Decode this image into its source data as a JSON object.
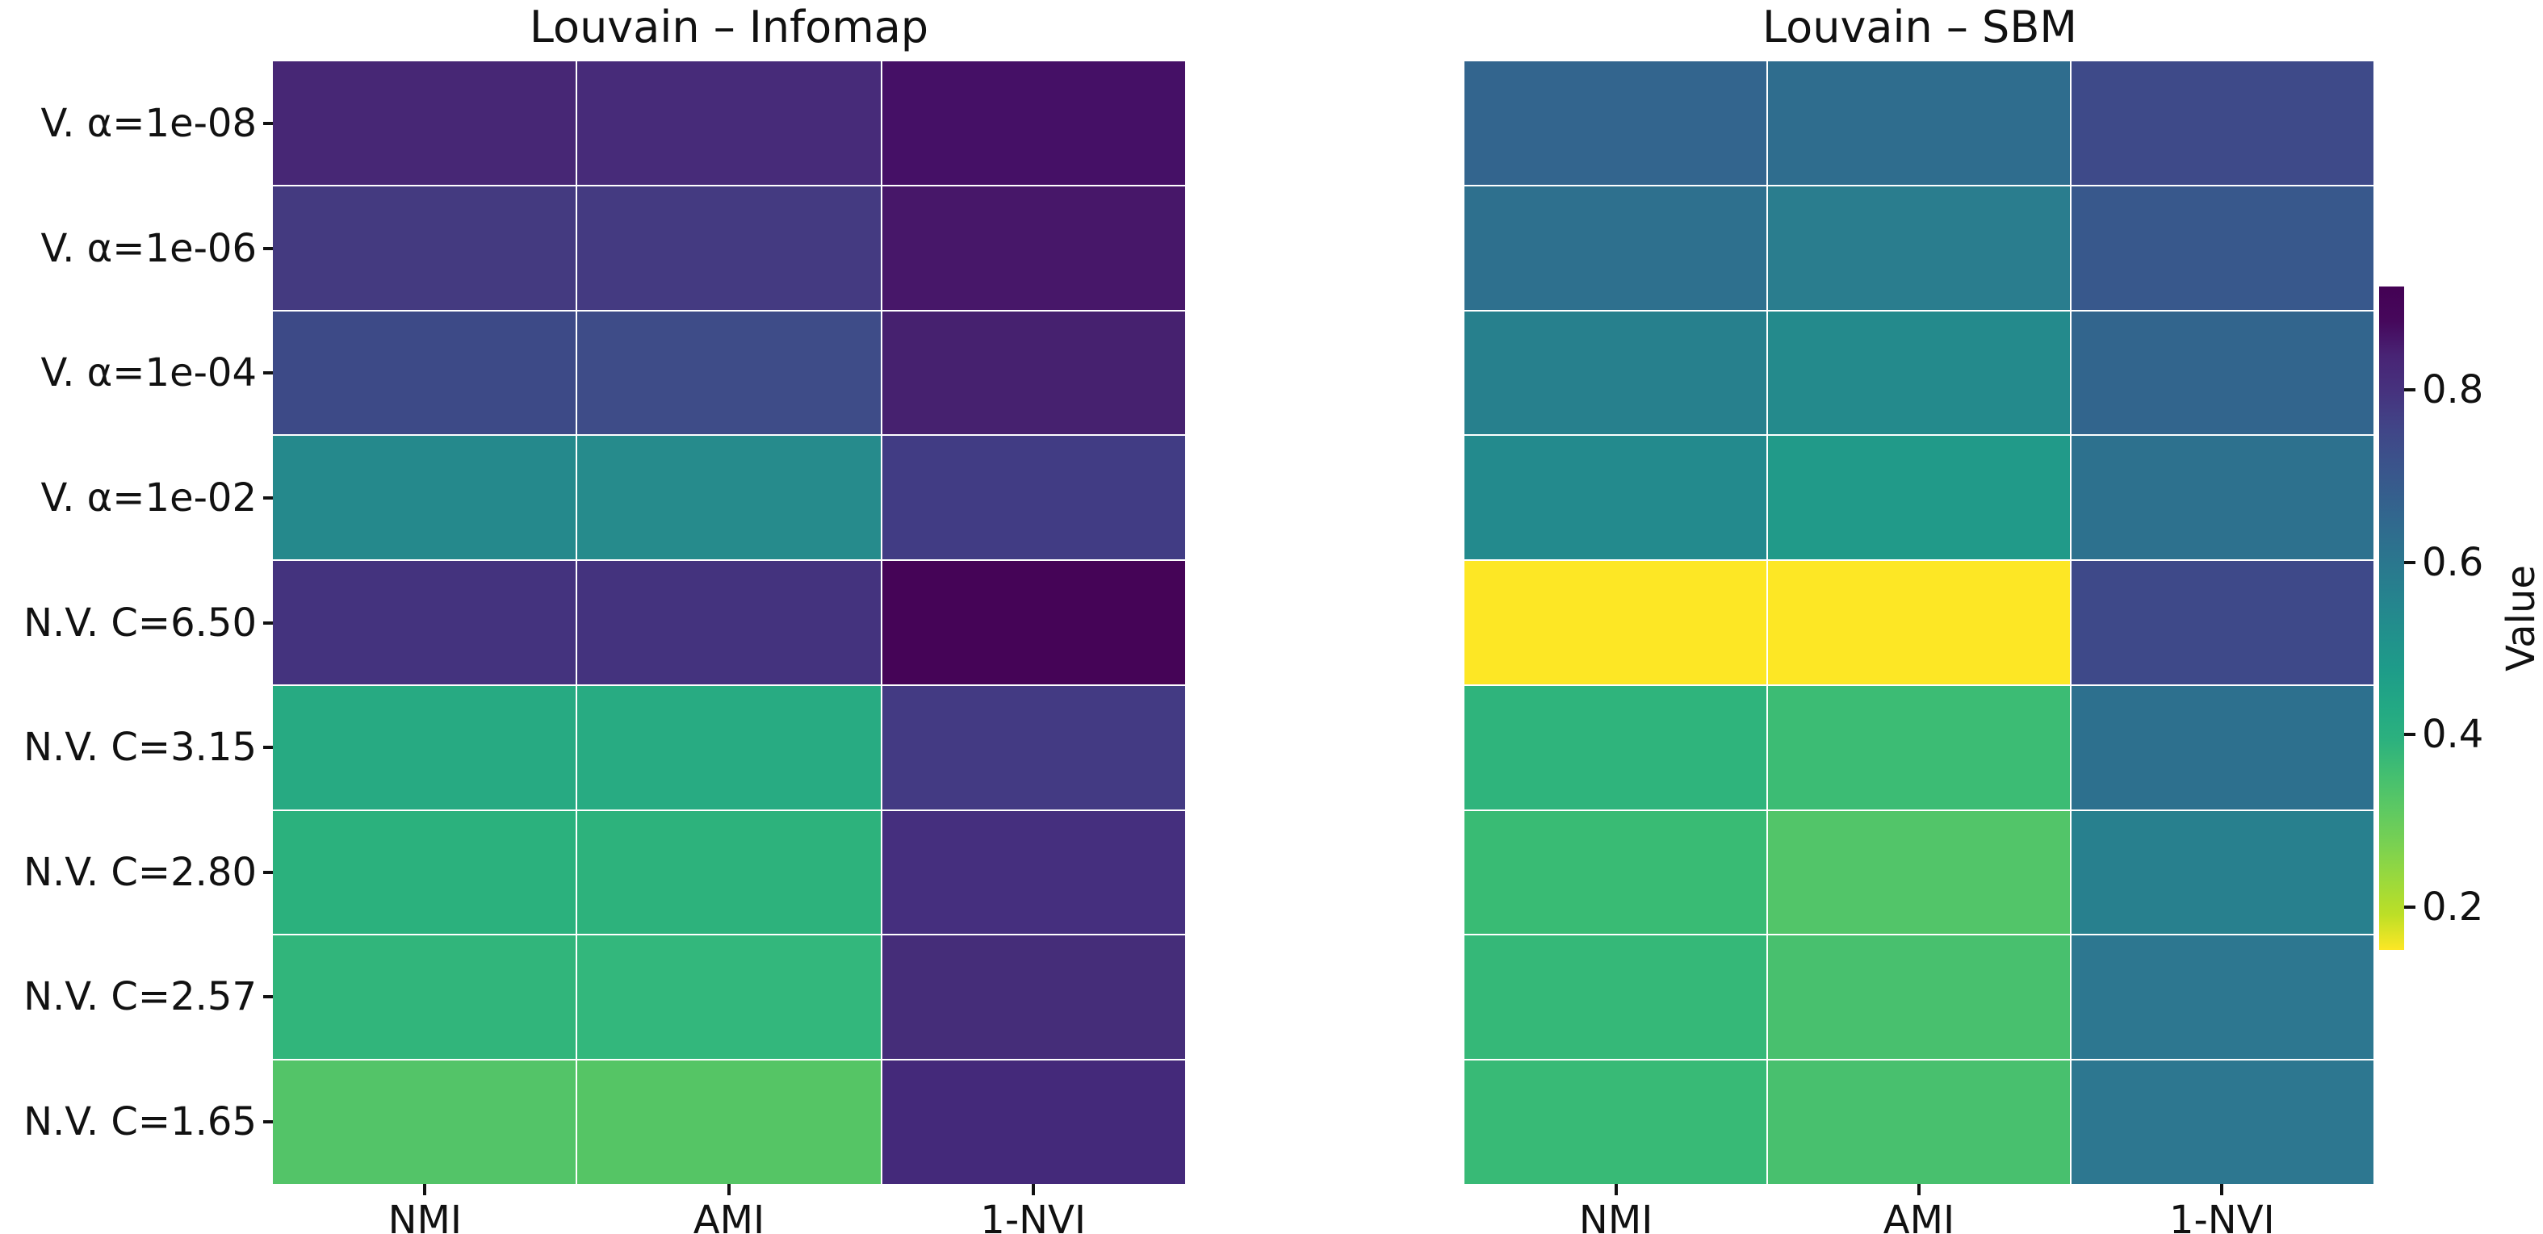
{
  "figure": {
    "background": "#ffffff",
    "text_color": "#111111"
  },
  "chart_data": [
    {
      "type": "heatmap",
      "title": "Louvain – Infomap",
      "rows": [
        "V. α=1e-08",
        "V. α=1e-06",
        "V. α=1e-04",
        "V. α=1e-02",
        "N.V. C=6.50",
        "N.V. C=3.15",
        "N.V. C=2.80",
        "N.V. C=2.57",
        "N.V. C=1.65"
      ],
      "columns": [
        "NMI",
        "AMI",
        "1-NVI"
      ],
      "values": [
        [
          0.84,
          0.83,
          0.87
        ],
        [
          0.79,
          0.79,
          0.86
        ],
        [
          0.75,
          0.75,
          0.85
        ],
        [
          0.56,
          0.56,
          0.78
        ],
        [
          0.8,
          0.8,
          0.9
        ],
        [
          0.45,
          0.45,
          0.79
        ],
        [
          0.42,
          0.42,
          0.81
        ],
        [
          0.42,
          0.41,
          0.82
        ],
        [
          0.36,
          0.35,
          0.83
        ]
      ],
      "colors": [
        [
          "#472775",
          "#472b79",
          "#451066"
        ],
        [
          "#443a80",
          "#443a81",
          "#471769"
        ],
        [
          "#3d4a87",
          "#3e4c88",
          "#46216f"
        ],
        [
          "#25898c",
          "#268b8c",
          "#413c84"
        ],
        [
          "#44337e",
          "#44337e",
          "#450457"
        ],
        [
          "#27aa82",
          "#28ab82",
          "#433a83"
        ],
        [
          "#2bb17d",
          "#2db27c",
          "#452f7e"
        ],
        [
          "#31b57b",
          "#33b77c",
          "#452d79"
        ],
        [
          "#53c468",
          "#55c565",
          "#44297a"
        ]
      ],
      "colormap": "viridis_r",
      "vmin": 0.15,
      "vmax": 0.92,
      "grid": true,
      "gridline_color": "#ffffff"
    },
    {
      "type": "heatmap",
      "title": "Louvain – SBM",
      "rows": [
        "V. α=1e-08",
        "V. α=1e-06",
        "V. α=1e-04",
        "V. α=1e-02",
        "N.V. C=6.50",
        "N.V. C=3.15",
        "N.V. C=2.80",
        "N.V. C=2.57",
        "N.V. C=1.65"
      ],
      "columns": [
        "NMI",
        "AMI",
        "1-NVI"
      ],
      "values": [
        [
          0.67,
          0.65,
          0.75
        ],
        [
          0.64,
          0.6,
          0.71
        ],
        [
          0.59,
          0.55,
          0.67
        ],
        [
          0.55,
          0.5,
          0.64
        ],
        [
          0.15,
          0.15,
          0.75
        ],
        [
          0.41,
          0.39,
          0.64
        ],
        [
          0.4,
          0.36,
          0.59
        ],
        [
          0.4,
          0.38,
          0.62
        ],
        [
          0.4,
          0.38,
          0.62
        ]
      ],
      "colors": [
        [
          "#33658e",
          "#2f6d8e",
          "#3e4a89"
        ],
        [
          "#2e708e",
          "#2a7d8e",
          "#38588c"
        ],
        [
          "#27808d",
          "#248a8c",
          "#32658d"
        ],
        [
          "#238a8d",
          "#219a89",
          "#2d718e"
        ],
        [
          "#fde725",
          "#fde725",
          "#3e4989"
        ],
        [
          "#2fb47c",
          "#3cbc74",
          "#2d708e"
        ],
        [
          "#39bb74",
          "#52c569",
          "#28808e"
        ],
        [
          "#35b878",
          "#48c06e",
          "#2d7790"
        ],
        [
          "#38ba76",
          "#48c06e",
          "#2d7790"
        ]
      ],
      "colormap": "viridis_r",
      "vmin": 0.15,
      "vmax": 0.92,
      "grid": true,
      "gridline_color": "#ffffff"
    }
  ],
  "colorbar": {
    "label": "Value",
    "tick_values": [
      0.8,
      0.6,
      0.4,
      0.2
    ],
    "tick_labels": [
      "0.8",
      "0.6",
      "0.4",
      "0.2"
    ],
    "vmin": 0.15,
    "vmax": 0.92,
    "orientation": "vertical",
    "position": "right",
    "gradient_top_to_bottom": [
      "#440154",
      "#46085c",
      "#482475",
      "#46327e",
      "#414487",
      "#3b528b",
      "#355f8d",
      "#2f6c8e",
      "#2a788e",
      "#25848e",
      "#21918c",
      "#1e9c89",
      "#22a884",
      "#2cb17e",
      "#44bf70",
      "#5ec962",
      "#7ad151",
      "#9bd93c",
      "#bddf26",
      "#fde725"
    ]
  }
}
